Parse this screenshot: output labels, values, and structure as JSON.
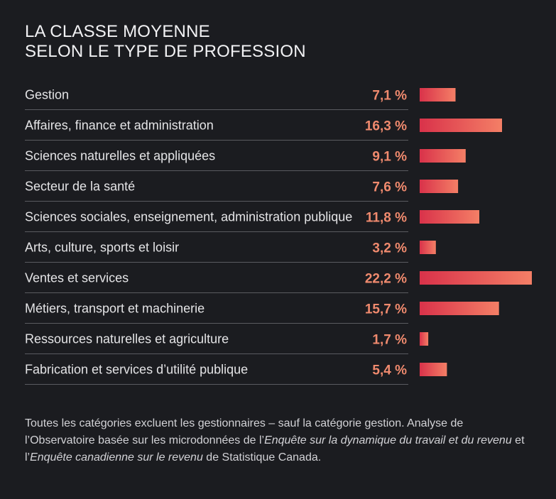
{
  "chart_data": {
    "type": "bar",
    "orientation": "horizontal",
    "title": [
      "LA CLASSE MOYENNE",
      "SELON LE TYPE DE PROFESSION"
    ],
    "categories": [
      "Gestion",
      "Affaires, finance et administration",
      "Sciences naturelles et appliquées",
      "Secteur de la santé",
      "Sciences sociales, enseignement, administration publique",
      "Arts, culture, sports et loisir",
      "Ventes et services",
      "Métiers, transport et machinerie",
      "Ressources naturelles et agriculture",
      "Fabrication et services d’utilité publique"
    ],
    "values": [
      7.1,
      16.3,
      9.1,
      7.6,
      11.8,
      3.2,
      22.2,
      15.7,
      1.7,
      5.4
    ],
    "value_labels": [
      "7,1 %",
      "16,3 %",
      "9,1 %",
      "7,6 %",
      "11,8 %",
      "3,2 %",
      "22,2 %",
      "15,7 %",
      "1,7 %",
      "5,4 %"
    ],
    "unit": "%",
    "xlim": [
      0,
      22.2
    ],
    "colors": {
      "bar_start": "#d9324a",
      "bar_end": "#f47f66",
      "value_text": "#f08a6e",
      "separator": "#5a5b60",
      "background": "#1b1c20"
    }
  },
  "footnote": {
    "part1": "Toutes les catégories excluent les gestionnaires – sauf la catégorie gestion. Analyse de l’Observatoire basée sur les microdonnées de l’",
    "em1": "Enquête sur la dynamique du travail et du revenu",
    "part2": " et l’",
    "em2": "Enquête canadienne sur le revenu",
    "part3": " de Statistique Canada."
  }
}
